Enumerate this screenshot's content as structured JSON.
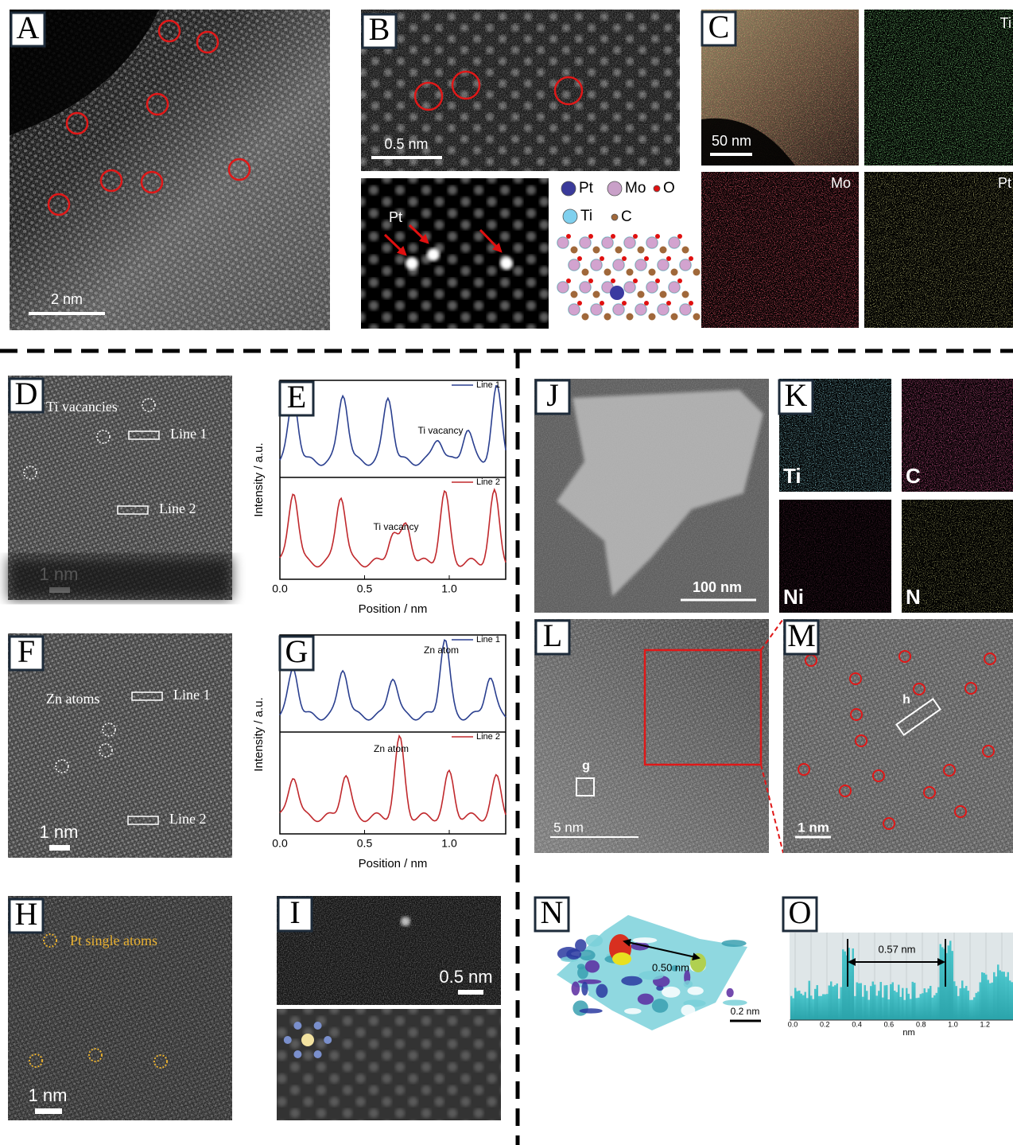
{
  "panels": {
    "a": {
      "letter": "A",
      "scale": "2 nm"
    },
    "b": {
      "letter": "B",
      "scale": "0.5 nm",
      "arrow_label": "Pt",
      "legend": [
        "Pt",
        "Mo",
        "O",
        "Ti",
        "C"
      ]
    },
    "c": {
      "letter": "C",
      "scale": "50 nm",
      "maps": [
        "Ti",
        "Mo",
        "Pt"
      ]
    },
    "d": {
      "letter": "D",
      "annotation": "Ti vacancies",
      "line1": "Line 1",
      "line2": "Line 2",
      "scale": "1 nm"
    },
    "e": {
      "letter": "E",
      "legend": [
        "Line 1",
        "Line 2"
      ],
      "annotations": [
        "Ti vacancy",
        "Ti vacancy"
      ],
      "y_label": "Intensity / a.u.",
      "x_label": "Position / nm",
      "xticks": [
        "0.0",
        "0.5",
        "1.0"
      ]
    },
    "f": {
      "letter": "F",
      "annotation": "Zn atoms",
      "line1": "Line 1",
      "line2": "Line 2",
      "scale": "1 nm"
    },
    "g": {
      "letter": "G",
      "legend": [
        "Line 1",
        "Line 2"
      ],
      "annotations": [
        "Zn atom",
        "Zn atom"
      ],
      "y_label": "Intensity / a.u.",
      "x_label": "Position / nm",
      "xticks": [
        "0.0",
        "0.5",
        "1.0"
      ]
    },
    "h": {
      "letter": "H",
      "annotation": "Pt single atoms",
      "scale": "1 nm"
    },
    "i": {
      "letter": "I",
      "scale": "0.5 nm"
    },
    "j": {
      "letter": "J",
      "scale": "100 nm"
    },
    "k": {
      "letter": "K",
      "maps": [
        "Ti",
        "C",
        "Ni",
        "N"
      ]
    },
    "l": {
      "letter": "L",
      "box": "g",
      "scale": "5 nm"
    },
    "m": {
      "letter": "M",
      "box": "h",
      "scale": "1 nm"
    },
    "n": {
      "letter": "N",
      "distance": "0.50 nm",
      "scale": "0.2 nm"
    },
    "o": {
      "letter": "O",
      "distance": "0.57 nm",
      "xticks": [
        "0.0",
        "0.2",
        "0.4",
        "0.6",
        "0.8",
        "1.0",
        "1.2"
      ],
      "x_label": "nm"
    }
  }
}
